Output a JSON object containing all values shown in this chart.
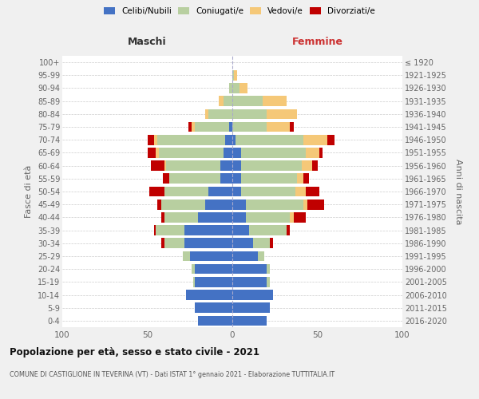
{
  "age_groups": [
    "0-4",
    "5-9",
    "10-14",
    "15-19",
    "20-24",
    "25-29",
    "30-34",
    "35-39",
    "40-44",
    "45-49",
    "50-54",
    "55-59",
    "60-64",
    "65-69",
    "70-74",
    "75-79",
    "80-84",
    "85-89",
    "90-94",
    "95-99",
    "100+"
  ],
  "birth_years": [
    "2016-2020",
    "2011-2015",
    "2006-2010",
    "2001-2005",
    "1996-2000",
    "1991-1995",
    "1986-1990",
    "1981-1985",
    "1976-1980",
    "1971-1975",
    "1966-1970",
    "1961-1965",
    "1956-1960",
    "1951-1955",
    "1946-1950",
    "1941-1945",
    "1936-1940",
    "1931-1935",
    "1926-1930",
    "1921-1925",
    "≤ 1920"
  ],
  "colors": {
    "celibi": "#4472c4",
    "coniugati": "#b8cfa0",
    "vedovi": "#f5c878",
    "divorziati": "#c00000"
  },
  "maschi": {
    "celibi": [
      20,
      22,
      27,
      22,
      22,
      25,
      28,
      28,
      20,
      16,
      14,
      7,
      7,
      5,
      4,
      2,
      0,
      0,
      0,
      0,
      0
    ],
    "coniugati": [
      0,
      0,
      0,
      1,
      2,
      4,
      12,
      17,
      20,
      26,
      26,
      30,
      32,
      38,
      40,
      20,
      14,
      5,
      2,
      0,
      0
    ],
    "vedovi": [
      0,
      0,
      0,
      0,
      0,
      0,
      0,
      0,
      0,
      0,
      0,
      0,
      1,
      2,
      2,
      2,
      2,
      3,
      0,
      0,
      0
    ],
    "divorziati": [
      0,
      0,
      0,
      0,
      0,
      0,
      2,
      1,
      2,
      2,
      9,
      4,
      8,
      5,
      4,
      2,
      0,
      0,
      0,
      0,
      0
    ]
  },
  "femmine": {
    "celibi": [
      20,
      22,
      24,
      20,
      20,
      15,
      12,
      10,
      8,
      8,
      5,
      5,
      5,
      5,
      2,
      0,
      0,
      0,
      0,
      0,
      0
    ],
    "coniugati": [
      0,
      0,
      0,
      2,
      2,
      4,
      10,
      22,
      26,
      34,
      32,
      33,
      36,
      38,
      40,
      20,
      20,
      18,
      4,
      1,
      0
    ],
    "vedovi": [
      0,
      0,
      0,
      0,
      0,
      0,
      0,
      0,
      2,
      2,
      6,
      4,
      6,
      8,
      14,
      14,
      18,
      14,
      5,
      2,
      0
    ],
    "divorziati": [
      0,
      0,
      0,
      0,
      0,
      0,
      2,
      2,
      7,
      10,
      8,
      3,
      3,
      2,
      4,
      2,
      0,
      0,
      0,
      0,
      0
    ]
  },
  "xlim": 100,
  "title": "Popolazione per età, sesso e stato civile - 2021",
  "subtitle": "COMUNE DI CASTIGLIONE IN TEVERINA (VT) - Dati ISTAT 1° gennaio 2021 - Elaborazione TUTTITALIA.IT",
  "ylabel_left": "Fasce di età",
  "ylabel_right": "Anni di nascita",
  "xlabel_left": "Maschi",
  "xlabel_right": "Femmine",
  "legend_labels": [
    "Celibi/Nubili",
    "Coniugati/e",
    "Vedovi/e",
    "Divorziati/e"
  ],
  "bg_color": "#f0f0f0",
  "plot_bg_color": "#ffffff"
}
